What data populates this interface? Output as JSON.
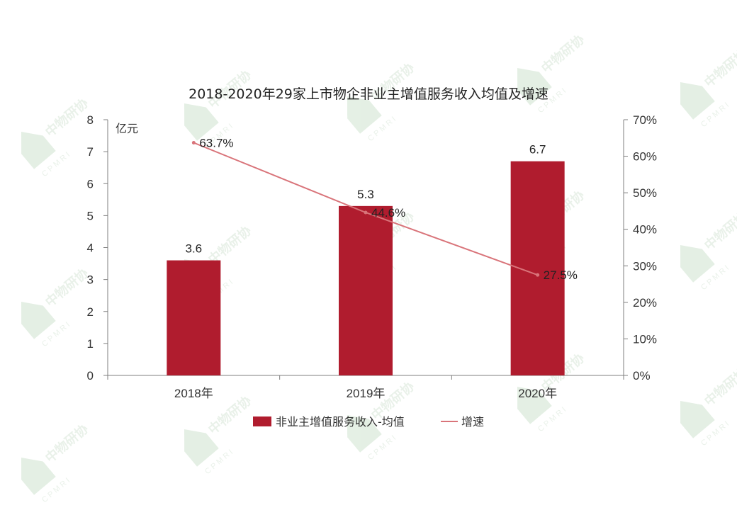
{
  "watermark": {
    "text": "中物研协",
    "sub": "CPMRI"
  },
  "chart_data": {
    "type": "bar",
    "title": "2018-2020年29家上市物企非业主增值服务收入均值及增速",
    "categories": [
      "2018年",
      "2019年",
      "2020年"
    ],
    "y_unit": "亿元",
    "ylim": [
      0,
      8
    ],
    "yticks": [
      "0",
      "1",
      "2",
      "3",
      "4",
      "5",
      "6",
      "7",
      "8"
    ],
    "y2lim": [
      0,
      70
    ],
    "y2ticks": [
      "0%",
      "10%",
      "20%",
      "30%",
      "40%",
      "50%",
      "60%",
      "70%"
    ],
    "grid": false,
    "legend_position": "bottom",
    "series": [
      {
        "name": "非业主增值服务收入-均值",
        "type": "bar",
        "axis": "left",
        "color": "#b01c2e",
        "values": [
          3.6,
          5.3,
          6.7
        ],
        "labels": [
          "3.6",
          "5.3",
          "6.7"
        ]
      },
      {
        "name": "增速",
        "type": "line",
        "axis": "right",
        "color": "#d9747a",
        "values": [
          63.7,
          44.6,
          27.5
        ],
        "labels": [
          "63.7%",
          "44.6%",
          "27.5%"
        ]
      }
    ]
  }
}
